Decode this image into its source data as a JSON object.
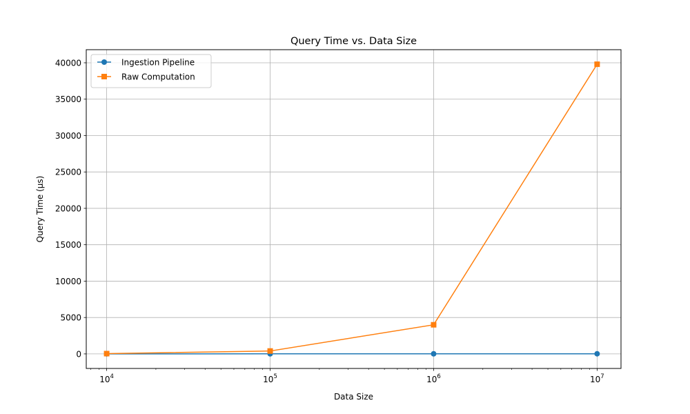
{
  "chart_data": {
    "type": "line",
    "title": "Query Time vs. Data Size",
    "xlabel": "Data Size",
    "ylabel": "Query Time (µs)",
    "x_scale": "log",
    "x": [
      10000,
      100000,
      1000000,
      10000000
    ],
    "x_ticks": [
      {
        "value": 10000,
        "base": "10",
        "exp": "4"
      },
      {
        "value": 100000,
        "base": "10",
        "exp": "5"
      },
      {
        "value": 1000000,
        "base": "10",
        "exp": "6"
      },
      {
        "value": 10000000,
        "base": "10",
        "exp": "7"
      }
    ],
    "y_ticks": [
      "0",
      "5000",
      "10000",
      "15000",
      "20000",
      "25000",
      "30000",
      "35000",
      "40000"
    ],
    "xlim": [
      7500,
      14000000
    ],
    "ylim": [
      -2000,
      41800
    ],
    "grid": true,
    "legend_position": "top-left",
    "series": [
      {
        "name": "Ingestion Pipeline",
        "color": "#1f77b4",
        "marker": "circle",
        "values": [
          5,
          10,
          15,
          20
        ]
      },
      {
        "name": "Raw Computation",
        "color": "#ff7f0e",
        "marker": "square",
        "values": [
          40,
          400,
          4000,
          39800
        ]
      }
    ]
  }
}
